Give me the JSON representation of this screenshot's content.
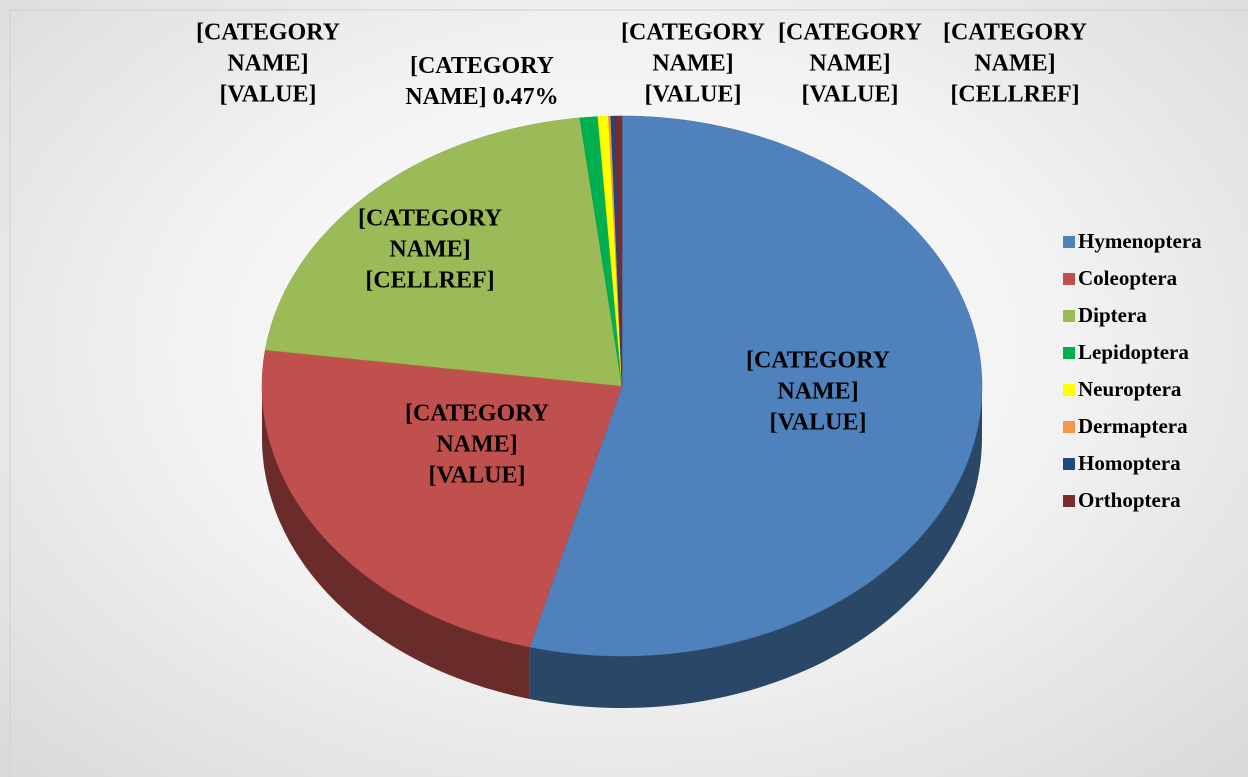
{
  "chart_data": {
    "type": "pie",
    "three_d": true,
    "categories": [
      "Hymenoptera",
      "Coleoptera",
      "Diptera",
      "Lepidoptera",
      "Neuroptera",
      "Dermaptera",
      "Homoptera",
      "Orthoptera"
    ],
    "values": [
      54.13,
      23,
      21,
      0.8,
      0.47,
      0.1,
      0.2,
      0.3
    ],
    "value_labels": [
      "[CATEGORY NAME] [VALUE]",
      "[CATEGORY NAME] [VALUE]",
      "[CATEGORY NAME] [CELLREF]",
      "[CATEGORY NAME] [VALUE]",
      "[CATEGORY NAME] 0.47%",
      "[CATEGORY NAME] [VALUE]",
      "[CATEGORY NAME] [VALUE]",
      "[CATEGORY NAME] [CELLREF]"
    ],
    "colors": [
      "#4f81bd",
      "#c0504d",
      "#9bbb59",
      "#00b050",
      "#ffff00",
      "#f79646",
      "#1f497d",
      "#7b2c2c"
    ],
    "legend": "right"
  }
}
